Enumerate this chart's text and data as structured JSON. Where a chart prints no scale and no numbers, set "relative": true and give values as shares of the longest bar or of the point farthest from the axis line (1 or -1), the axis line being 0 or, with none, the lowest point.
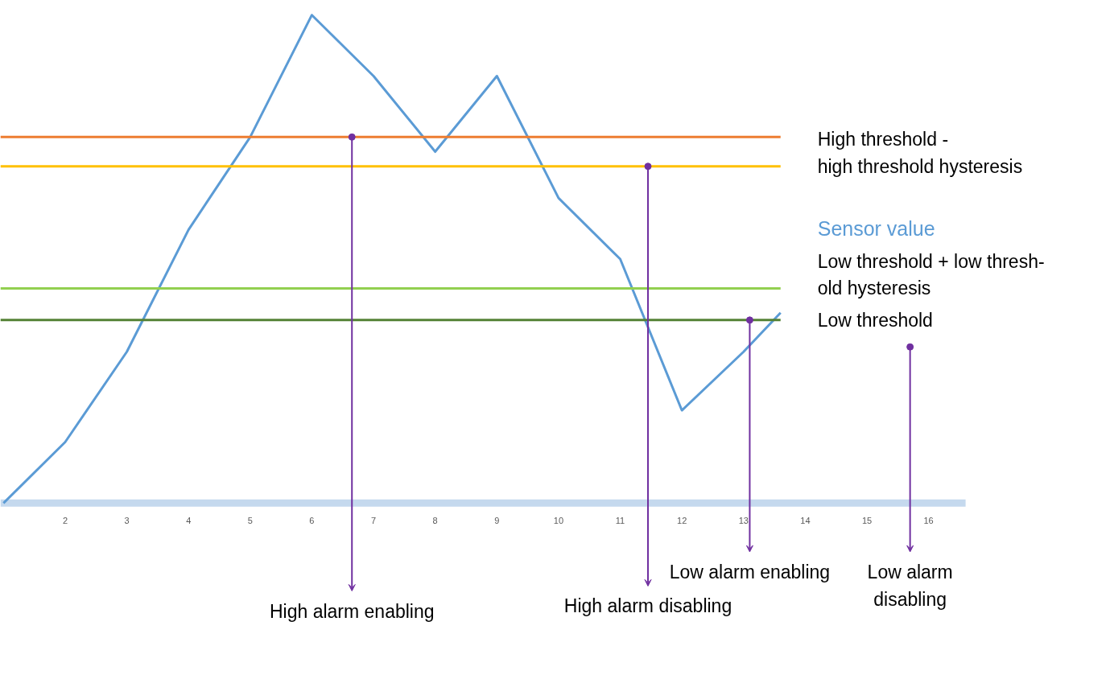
{
  "chart_data": {
    "type": "line",
    "relative": true,
    "x": [
      1,
      2,
      3,
      4,
      5,
      6,
      7,
      8,
      9,
      10,
      11,
      12,
      13,
      13.6
    ],
    "series": [
      {
        "name": "Sensor value",
        "color": "#5b9bd5",
        "values": [
          0,
          0.125,
          0.31,
          0.56,
          0.75,
          1,
          0.875,
          0.72,
          0.875,
          0.625,
          0.5,
          0.19,
          0.31,
          0.39
        ]
      }
    ],
    "xlim": [
      0.95,
      16.6
    ],
    "xticks": [
      2,
      3,
      4,
      5,
      6,
      7,
      8,
      9,
      10,
      11,
      12,
      13,
      14,
      15,
      16
    ],
    "marker": "none",
    "line_style": "solid",
    "grid": false,
    "legend": false,
    "ref_lines": [
      {
        "axis": "y",
        "value": 0.75,
        "label": null,
        "color": "#ed7d31"
      },
      {
        "axis": "y",
        "value": 0.69,
        "label": "High threshold -\nhigh threshold hysteresis",
        "color": "#ffc000"
      },
      {
        "axis": "y",
        "value": 0.44,
        "label": "Low threshold + low thresh-\nold hysteresis",
        "color": "#92d050"
      },
      {
        "axis": "y",
        "value": 0.375,
        "label": "Low threshold",
        "color": "#548235"
      }
    ],
    "annotations": [
      {
        "text": "High alarm enabling",
        "x": 6.65,
        "y": 0.75
      },
      {
        "text": "High alarm disabling",
        "x": 11.45,
        "y": 0.69
      },
      {
        "text": "Low alarm enabling",
        "x": 13.1,
        "y": 0.375
      },
      {
        "text": "Low alarm\ndisabling",
        "x": 15.7,
        "y": 0.32
      }
    ]
  }
}
